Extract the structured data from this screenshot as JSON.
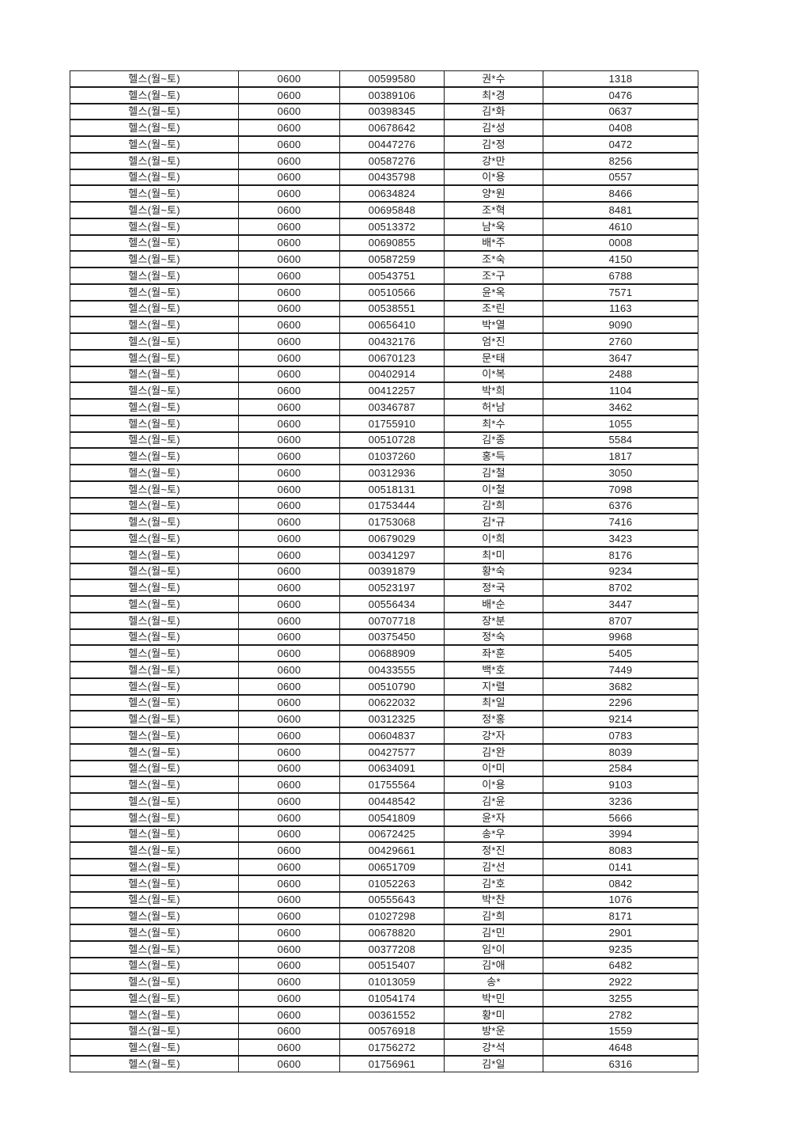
{
  "colors": {
    "background": "#ffffff",
    "border": "#1c1c1c",
    "text": "#1f1f1f"
  },
  "table": {
    "rows": [
      [
        "헬스(월~토)",
        "0600",
        "00599580",
        "권*수",
        "1318"
      ],
      [
        "헬스(월~토)",
        "0600",
        "00389106",
        "최*경",
        "0476"
      ],
      [
        "헬스(월~토)",
        "0600",
        "00398345",
        "김*화",
        "0637"
      ],
      [
        "헬스(월~토)",
        "0600",
        "00678642",
        "김*성",
        "0408"
      ],
      [
        "헬스(월~토)",
        "0600",
        "00447276",
        "김*정",
        "0472"
      ],
      [
        "헬스(월~토)",
        "0600",
        "00587276",
        "강*만",
        "8256"
      ],
      [
        "헬스(월~토)",
        "0600",
        "00435798",
        "이*용",
        "0557"
      ],
      [
        "헬스(월~토)",
        "0600",
        "00634824",
        "양*원",
        "8466"
      ],
      [
        "헬스(월~토)",
        "0600",
        "00695848",
        "조*혁",
        "8481"
      ],
      [
        "헬스(월~토)",
        "0600",
        "00513372",
        "남*욱",
        "4610"
      ],
      [
        "헬스(월~토)",
        "0600",
        "00690855",
        "배*주",
        "0008"
      ],
      [
        "헬스(월~토)",
        "0600",
        "00587259",
        "조*숙",
        "4150"
      ],
      [
        "헬스(월~토)",
        "0600",
        "00543751",
        "조*구",
        "6788"
      ],
      [
        "헬스(월~토)",
        "0600",
        "00510566",
        "윤*옥",
        "7571"
      ],
      [
        "헬스(월~토)",
        "0600",
        "00538551",
        "조*린",
        "1163"
      ],
      [
        "헬스(월~토)",
        "0600",
        "00656410",
        "박*열",
        "9090"
      ],
      [
        "헬스(월~토)",
        "0600",
        "00432176",
        "엄*진",
        "2760"
      ],
      [
        "헬스(월~토)",
        "0600",
        "00670123",
        "문*태",
        "3647"
      ],
      [
        "헬스(월~토)",
        "0600",
        "00402914",
        "이*복",
        "2488"
      ],
      [
        "헬스(월~토)",
        "0600",
        "00412257",
        "박*희",
        "1104"
      ],
      [
        "헬스(월~토)",
        "0600",
        "00346787",
        "허*남",
        "3462"
      ],
      [
        "헬스(월~토)",
        "0600",
        "01755910",
        "최*수",
        "1055"
      ],
      [
        "헬스(월~토)",
        "0600",
        "00510728",
        "김*종",
        "5584"
      ],
      [
        "헬스(월~토)",
        "0600",
        "01037260",
        "홍*득",
        "1817"
      ],
      [
        "헬스(월~토)",
        "0600",
        "00312936",
        "김*철",
        "3050"
      ],
      [
        "헬스(월~토)",
        "0600",
        "00518131",
        "이*철",
        "7098"
      ],
      [
        "헬스(월~토)",
        "0600",
        "01753444",
        "김*희",
        "6376"
      ],
      [
        "헬스(월~토)",
        "0600",
        "01753068",
        "김*규",
        "7416"
      ],
      [
        "헬스(월~토)",
        "0600",
        "00679029",
        "이*희",
        "3423"
      ],
      [
        "헬스(월~토)",
        "0600",
        "00341297",
        "최*미",
        "8176"
      ],
      [
        "헬스(월~토)",
        "0600",
        "00391879",
        "황*숙",
        "9234"
      ],
      [
        "헬스(월~토)",
        "0600",
        "00523197",
        "정*국",
        "8702"
      ],
      [
        "헬스(월~토)",
        "0600",
        "00556434",
        "배*순",
        "3447"
      ],
      [
        "헬스(월~토)",
        "0600",
        "00707718",
        "장*분",
        "8707"
      ],
      [
        "헬스(월~토)",
        "0600",
        "00375450",
        "정*숙",
        "9968"
      ],
      [
        "헬스(월~토)",
        "0600",
        "00688909",
        "좌*훈",
        "5405"
      ],
      [
        "헬스(월~토)",
        "0600",
        "00433555",
        "백*호",
        "7449"
      ],
      [
        "헬스(월~토)",
        "0600",
        "00510790",
        "지*렬",
        "3682"
      ],
      [
        "헬스(월~토)",
        "0600",
        "00622032",
        "최*일",
        "2296"
      ],
      [
        "헬스(월~토)",
        "0600",
        "00312325",
        "정*홍",
        "9214"
      ],
      [
        "헬스(월~토)",
        "0600",
        "00604837",
        "강*자",
        "0783"
      ],
      [
        "헬스(월~토)",
        "0600",
        "00427577",
        "김*완",
        "8039"
      ],
      [
        "헬스(월~토)",
        "0600",
        "00634091",
        "이*미",
        "2584"
      ],
      [
        "헬스(월~토)",
        "0600",
        "01755564",
        "이*용",
        "9103"
      ],
      [
        "헬스(월~토)",
        "0600",
        "00448542",
        "김*윤",
        "3236"
      ],
      [
        "헬스(월~토)",
        "0600",
        "00541809",
        "윤*자",
        "5666"
      ],
      [
        "헬스(월~토)",
        "0600",
        "00672425",
        "송*우",
        "3994"
      ],
      [
        "헬스(월~토)",
        "0600",
        "00429661",
        "정*진",
        "8083"
      ],
      [
        "헬스(월~토)",
        "0600",
        "00651709",
        "김*선",
        "0141"
      ],
      [
        "헬스(월~토)",
        "0600",
        "01052263",
        "김*호",
        "0842"
      ],
      [
        "헬스(월~토)",
        "0600",
        "00555643",
        "박*찬",
        "1076"
      ],
      [
        "헬스(월~토)",
        "0600",
        "01027298",
        "김*희",
        "8171"
      ],
      [
        "헬스(월~토)",
        "0600",
        "00678820",
        "김*민",
        "2901"
      ],
      [
        "헬스(월~토)",
        "0600",
        "00377208",
        "임*이",
        "9235"
      ],
      [
        "헬스(월~토)",
        "0600",
        "00515407",
        "김*애",
        "6482"
      ],
      [
        "헬스(월~토)",
        "0600",
        "01013059",
        "송*",
        "2922"
      ],
      [
        "헬스(월~토)",
        "0600",
        "01054174",
        "박*민",
        "3255"
      ],
      [
        "헬스(월~토)",
        "0600",
        "00361552",
        "황*미",
        "2782"
      ],
      [
        "헬스(월~토)",
        "0600",
        "00576918",
        "방*운",
        "1559"
      ],
      [
        "헬스(월~토)",
        "0600",
        "01756272",
        "강*석",
        "4648"
      ],
      [
        "헬스(월~토)",
        "0600",
        "01756961",
        "김*일",
        "6316"
      ]
    ]
  }
}
